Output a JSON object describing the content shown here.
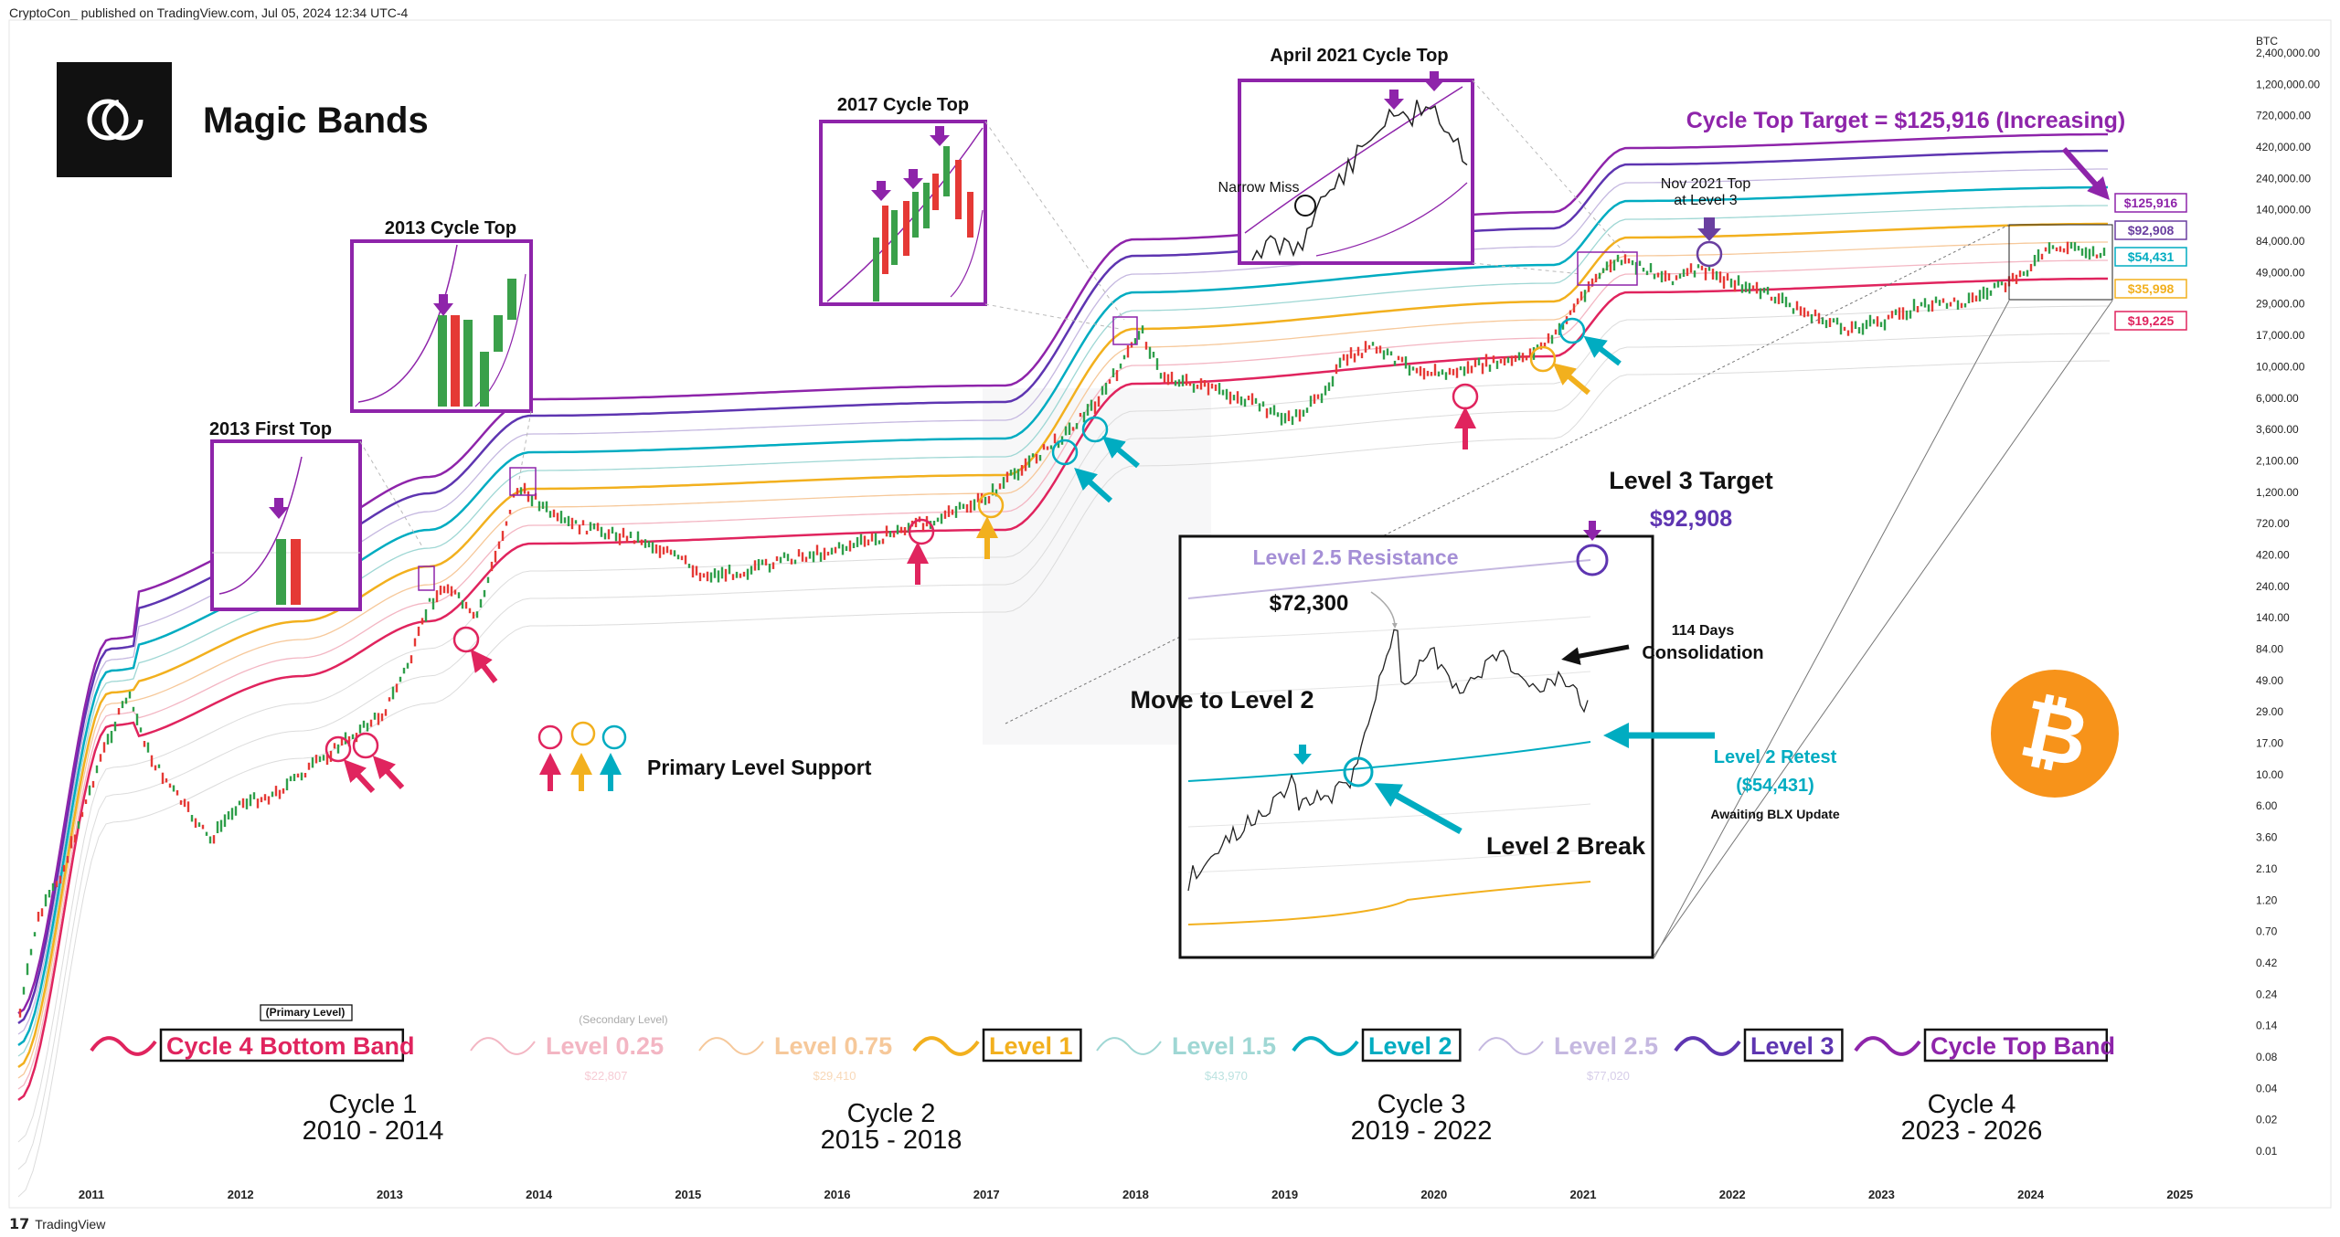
{
  "header": {
    "published_line": "CryptoCon_ published on TradingView.com, Jul 05, 2024 12:34 UTC-4"
  },
  "footer": {
    "brand": "TradingView"
  },
  "brand": {
    "title": "Magic Bands",
    "logo_icon": "crypto-con-logo-icon"
  },
  "chart_data": {
    "type": "line",
    "title": "Magic Bands",
    "yscale": "log",
    "ylabel": "BTC",
    "y_ticks": [
      "2,400,000.00",
      "1,200,000.00",
      "720,000.00",
      "420,000.00",
      "240,000.00",
      "140,000.00",
      "84,000.00",
      "49,000.00",
      "29,000.00",
      "17,000.00",
      "10,000.00",
      "6,000.00",
      "3,600.00",
      "2,100.00",
      "1,200.00",
      "720.00",
      "420.00",
      "240.00",
      "140.00",
      "84.00",
      "49.00",
      "29.00",
      "17.00",
      "10.00",
      "6.00",
      "3.60",
      "2.10",
      "1.20",
      "0.70",
      "0.42",
      "0.24",
      "0.14",
      "0.08",
      "0.04",
      "0.02",
      "0.01"
    ],
    "x_ticks": [
      "2011",
      "2012",
      "2013",
      "2014",
      "2015",
      "2016",
      "2017",
      "2018",
      "2019",
      "2020",
      "2021",
      "2022",
      "2023",
      "2024",
      "2025"
    ],
    "band_prices": [
      {
        "label": "$125,916",
        "band": "Cycle Top Band",
        "color": "#8e24aa"
      },
      {
        "label": "$92,908",
        "band": "Level 3",
        "color": "#6a3fa0"
      },
      {
        "label": "$54,431",
        "band": "Level 2",
        "color": "#00acc1"
      },
      {
        "label": "$35,998",
        "band": "Level 1",
        "color": "#f2b01e"
      },
      {
        "label": "$19,225",
        "band": "Cycle 4 Bottom Band",
        "color": "#e0245e"
      }
    ],
    "series": [
      {
        "name": "Cycle Top Band",
        "color": "#8e24aa"
      },
      {
        "name": "Level 3",
        "color": "#5e35b1"
      },
      {
        "name": "Level 2.5",
        "color": "#c5b8e0"
      },
      {
        "name": "Level 2",
        "color": "#00acc1"
      },
      {
        "name": "Level 1.5",
        "color": "#9fd7d4"
      },
      {
        "name": "Level 1",
        "color": "#f2b01e"
      },
      {
        "name": "Level 0.75",
        "color": "#f6c89a"
      },
      {
        "name": "Level 0.25",
        "color": "#f3b6c3"
      },
      {
        "name": "Cycle 4 Bottom Band",
        "color": "#e0245e"
      }
    ]
  },
  "annotations": {
    "cycle_top_target": "Cycle Top Target = $125,916 (Increasing)",
    "nov_2021_top_line1": "Nov 2021 Top",
    "nov_2021_top_line2": "at Level 3",
    "primary_level_support": "Primary Level Support",
    "level3_target_title": "Level 3 Target",
    "level3_target_value": "$92,908",
    "level25_resistance": "Level 2.5 Resistance",
    "price_72300": "$72,300",
    "days_114": "114 Days",
    "consolidation": "Consolidation",
    "move_to_level2": "Move to  Level 2",
    "level2_retest": "Level 2 Retest",
    "level2_retest_value": "($54,431)",
    "awaiting_blx": "Awaiting BLX Update",
    "level2_break": "Level 2 Break",
    "narrow_miss": "Narrow Miss"
  },
  "insets": [
    {
      "title": "2013 First Top"
    },
    {
      "title": "2013 Cycle Top"
    },
    {
      "title": "2017 Cycle Top"
    },
    {
      "title": "April 2021 Cycle Top"
    }
  ],
  "legend": {
    "primary_level_note": "(Primary Level)",
    "secondary_level_note": "(Secondary Level)",
    "items": [
      {
        "label": "Cycle 4 Bottom Band",
        "value": ""
      },
      {
        "label": "Level 0.25",
        "value": "$22,807"
      },
      {
        "label": "Level 0.75",
        "value": "$29,410"
      },
      {
        "label": "Level 1",
        "value": ""
      },
      {
        "label": "Level 1.5",
        "value": "$43,970"
      },
      {
        "label": "Level 2",
        "value": ""
      },
      {
        "label": "Level 2.5",
        "value": "$77,020"
      },
      {
        "label": "Level 3",
        "value": ""
      },
      {
        "label": "Cycle Top Band",
        "value": ""
      }
    ]
  },
  "cycles": [
    {
      "name": "Cycle 1",
      "years": "2010 - 2014"
    },
    {
      "name": "Cycle 2",
      "years": "2015 - 2018"
    },
    {
      "name": "Cycle 3",
      "years": "2019 - 2022"
    },
    {
      "name": "Cycle 4",
      "years": "2023 - 2026"
    }
  ],
  "bitcoin_icon": "bitcoin-logo-icon"
}
